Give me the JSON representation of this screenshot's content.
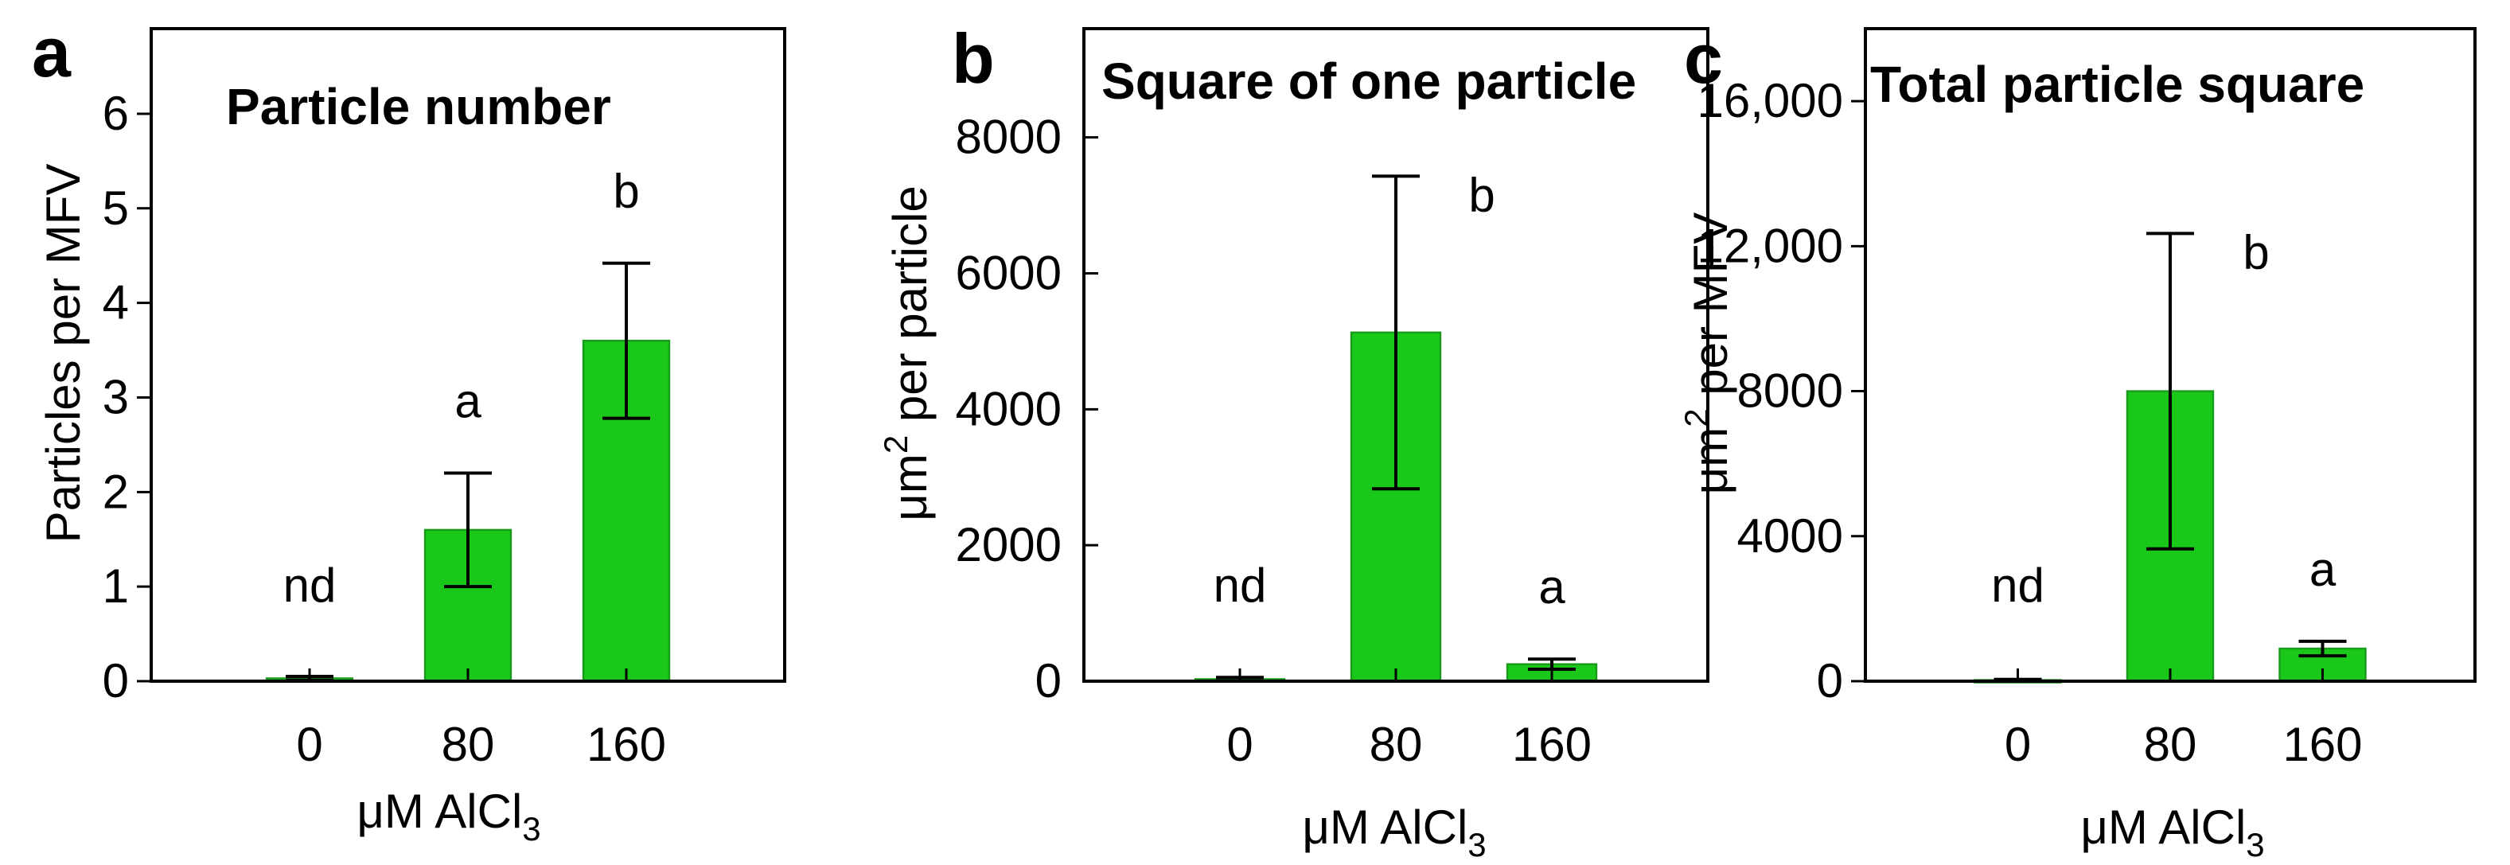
{
  "chart_data": [
    {
      "type": "bar",
      "panel_letter": "a",
      "title": "Particle number",
      "ylabel": "Particles per MFV",
      "xlabel": "μM AlCl",
      "xlabel_sub": "3",
      "categories": [
        "0",
        "80",
        "160"
      ],
      "values": [
        0.03,
        1.6,
        3.6
      ],
      "errors": [
        0.02,
        0.6,
        0.82
      ],
      "significance": [
        "nd",
        "a",
        "b"
      ],
      "ylim": [
        0,
        6.9
      ],
      "yticks": [
        0,
        1,
        2,
        3,
        4,
        5,
        6
      ],
      "ytick_labels": [
        "0",
        "1",
        "2",
        "3",
        "4",
        "5",
        "6"
      ],
      "bar_color": "#19c819",
      "grid": false,
      "legend": "none"
    },
    {
      "type": "bar",
      "panel_letter": "b",
      "title": "Square of one particle",
      "ylabel": "μm",
      "ylabel_sup": "2",
      "ylabel_rest": " per particle",
      "xlabel": "μM AlCl",
      "xlabel_sub": "3",
      "categories": [
        "0",
        "80",
        "160"
      ],
      "values": [
        30,
        5130,
        250
      ],
      "errors": [
        25,
        2300,
        75
      ],
      "significance": [
        "nd",
        "b",
        "a"
      ],
      "ylim": [
        0,
        9600
      ],
      "yticks": [
        0,
        2000,
        4000,
        6000,
        8000
      ],
      "ytick_labels": [
        "0",
        "2000",
        "4000",
        "6000",
        "8000"
      ],
      "bar_color": "#19c819",
      "grid": false,
      "legend": "none"
    },
    {
      "type": "bar",
      "panel_letter": "c",
      "title": "Total particle square",
      "ylabel": "μm",
      "ylabel_sup": "2",
      "ylabel_rest": " per MFV",
      "xlabel": "μM AlCl",
      "xlabel_sub": "3",
      "categories": [
        "0",
        "80",
        "160"
      ],
      "values": [
        30,
        8000,
        900
      ],
      "errors": [
        20,
        4350,
        200
      ],
      "significance": [
        "nd",
        "b",
        "a"
      ],
      "ylim": [
        0,
        18000
      ],
      "yticks": [
        0,
        4000,
        8000,
        12000,
        16000
      ],
      "ytick_labels": [
        "0",
        "4000",
        "8000",
        "12,000",
        "16,000"
      ],
      "bar_color": "#19c819",
      "grid": false,
      "legend": "none"
    }
  ]
}
